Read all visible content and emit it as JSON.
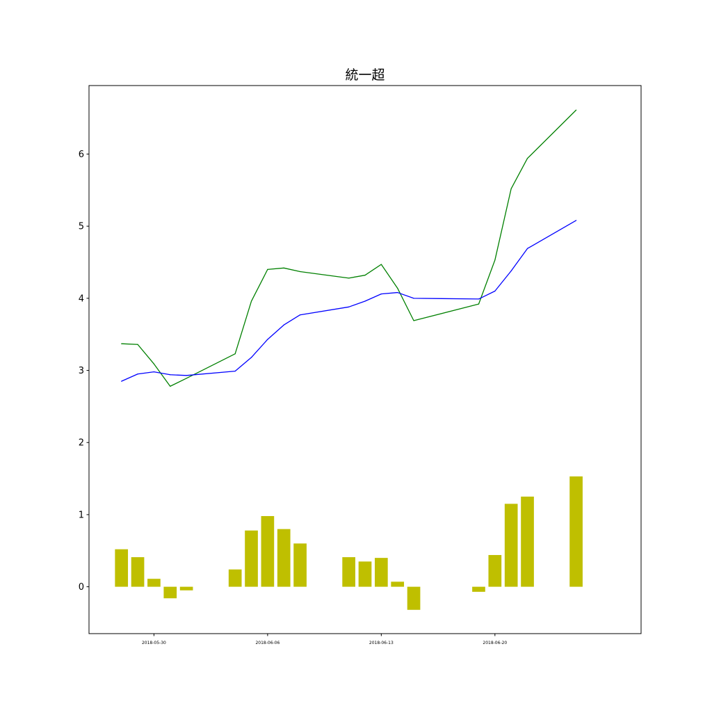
{
  "chart_data": {
    "type": "bar",
    "title": "統一超",
    "xlabel": "",
    "ylabel": "",
    "grid": false,
    "ylim": [
      -0.65,
      6.95
    ],
    "xlim": [
      "2018-05-26",
      "2018-06-29"
    ],
    "yticks": [
      0,
      1,
      2,
      3,
      4,
      5,
      6
    ],
    "xticks": [
      "2018-05-30",
      "2018-06-06",
      "2018-06-13",
      "2018-06-20"
    ],
    "x": [
      "2018-05-28",
      "2018-05-29",
      "2018-05-30",
      "2018-05-31",
      "2018-06-01",
      "2018-06-04",
      "2018-06-05",
      "2018-06-06",
      "2018-06-07",
      "2018-06-08",
      "2018-06-11",
      "2018-06-12",
      "2018-06-13",
      "2018-06-14",
      "2018-06-15",
      "2018-06-19",
      "2018-06-20",
      "2018-06-21",
      "2018-06-22",
      "2018-06-25"
    ],
    "series": [
      {
        "type": "bar",
        "color": "#bfbf00",
        "values": [
          0.52,
          0.41,
          0.11,
          -0.16,
          -0.05,
          0.24,
          0.78,
          0.98,
          0.8,
          0.6,
          0.41,
          0.35,
          0.4,
          0.07,
          -0.32,
          -0.07,
          0.44,
          1.15,
          1.25,
          1.53
        ]
      },
      {
        "type": "line",
        "color": "#008000",
        "values": [
          3.37,
          3.36,
          3.09,
          2.78,
          2.89,
          3.23,
          3.96,
          4.4,
          4.42,
          4.37,
          4.28,
          4.32,
          4.47,
          4.14,
          3.69,
          3.92,
          4.53,
          5.52,
          5.94,
          6.61
        ]
      },
      {
        "type": "line",
        "color": "#0000ff",
        "values": [
          2.85,
          2.95,
          2.98,
          2.94,
          2.93,
          2.99,
          3.18,
          3.43,
          3.63,
          3.77,
          3.88,
          3.96,
          4.06,
          4.08,
          4.0,
          3.99,
          4.1,
          4.38,
          4.69,
          5.08
        ]
      }
    ]
  }
}
